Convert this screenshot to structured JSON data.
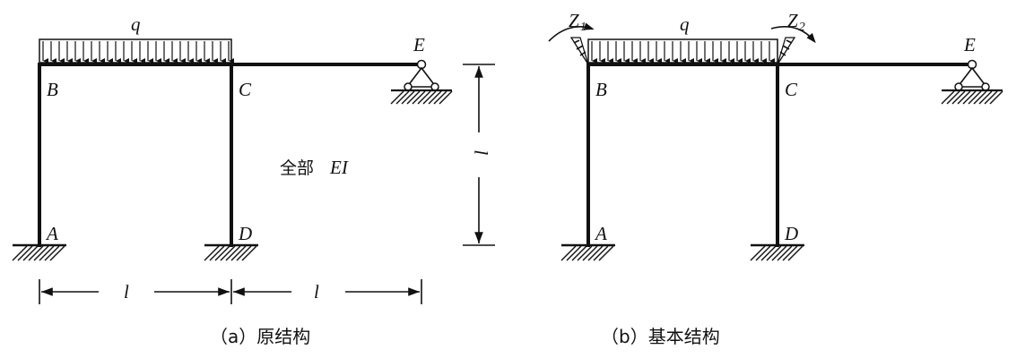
{
  "diagram_a": {
    "nodes": {
      "A": "A",
      "B": "B",
      "C": "C",
      "D": "D",
      "E": "E"
    },
    "load": "q",
    "span_left": "l",
    "span_right": "l",
    "height": "l",
    "stiffness_prefix": "全部",
    "stiffness": "EI",
    "caption": "（a）原结构"
  },
  "diagram_b": {
    "nodes": {
      "A": "A",
      "B": "B",
      "C": "C",
      "D": "D",
      "E": "E"
    },
    "load": "q",
    "z1_main": "Z",
    "z1_sub": "1",
    "z2_main": "Z",
    "z2_sub": "2",
    "caption": "（b）基本结构"
  }
}
